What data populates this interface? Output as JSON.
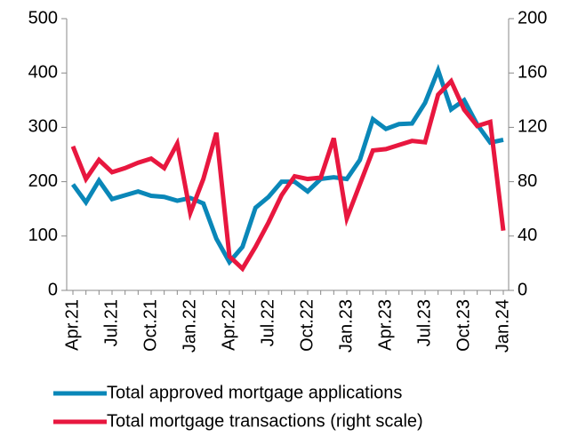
{
  "chart_data": {
    "type": "line",
    "categories": [
      "Apr.21",
      null,
      null,
      "Jul.21",
      null,
      null,
      "Oct.21",
      null,
      null,
      "Jan.22",
      null,
      null,
      "Apr.22",
      null,
      null,
      "Jul.22",
      null,
      null,
      "Oct.22",
      null,
      null,
      "Jan.23",
      null,
      null,
      "Apr.23",
      null,
      null,
      "Jul.23",
      null,
      null,
      "Oct.23",
      null,
      null,
      "Jan.24"
    ],
    "series": [
      {
        "name": "Total approved mortgage applications",
        "color": "#0a87b8",
        "axis": "y",
        "values": [
          195,
          162,
          202,
          168,
          175,
          182,
          174,
          172,
          165,
          170,
          160,
          95,
          52,
          80,
          152,
          172,
          200,
          200,
          182,
          205,
          208,
          205,
          240,
          315,
          297,
          306,
          307,
          345,
          405,
          333,
          350,
          305,
          272,
          277
        ]
      },
      {
        "name": "Total mortgage transactions (right scale)",
        "color": "#e8173f",
        "axis": "y2",
        "values": [
          106,
          82,
          96,
          87,
          90,
          94,
          97,
          90,
          108,
          57,
          82,
          116,
          25,
          16,
          32,
          50,
          70,
          84,
          82,
          83,
          112,
          53,
          78,
          103,
          104,
          107,
          110,
          109,
          144,
          154,
          133,
          121,
          124,
          44
        ]
      }
    ],
    "ylim": [
      0,
      500
    ],
    "yticks": [
      0,
      100,
      200,
      300,
      400,
      500
    ],
    "y2lim": [
      0,
      200
    ],
    "y2ticks": [
      0,
      40,
      80,
      120,
      160,
      200
    ]
  }
}
